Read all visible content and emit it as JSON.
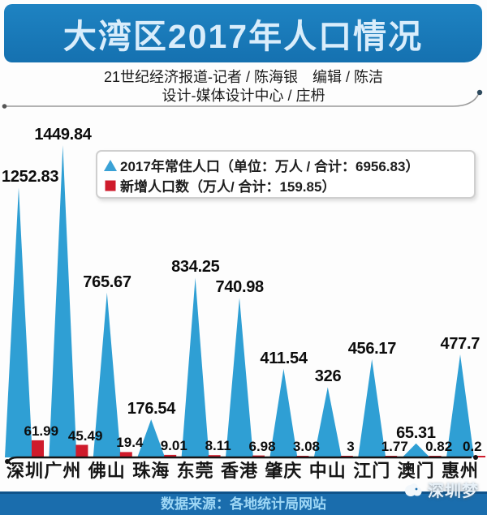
{
  "header": {
    "title": "大湾区2017年人口情况",
    "byline_line1": "21世纪经济报道-记者 / 陈海银　编辑 / 陈洁",
    "byline_line2": "设计-媒体设计中心 / 庄枬"
  },
  "legend": {
    "population": "2017年常住人口（单位：万人 / 合计：6956.83）",
    "increase": "新增人口数（万人/ 合计：159.85）"
  },
  "chart_data": {
    "type": "bar",
    "style": "triangle-spike pictorial columns + small bars",
    "title": "大湾区2017年人口情况",
    "categories": [
      "深圳",
      "广州",
      "佛山",
      "珠海",
      "东莞",
      "香港",
      "肇庆",
      "中山",
      "江门",
      "澳门",
      "惠州"
    ],
    "series": [
      {
        "name": "2017年常住人口",
        "unit": "万人",
        "total": 6956.83,
        "marker": "triangle",
        "color": "#2f9fd4",
        "values": [
          1252.83,
          1449.84,
          765.67,
          176.54,
          834.25,
          740.98,
          411.54,
          326,
          456.17,
          65.31,
          477.7
        ]
      },
      {
        "name": "新增人口数",
        "unit": "万人",
        "total": 159.85,
        "marker": "square",
        "color": "#cf1b2c",
        "values": [
          61.99,
          45.49,
          19.4,
          9.01,
          8.11,
          6.98,
          3.08,
          3,
          1.77,
          0.82,
          0.2
        ]
      }
    ],
    "ylim": [
      0,
      1500
    ],
    "grid": false,
    "value_labels": "above",
    "legend_position": "top-right",
    "colors": {
      "population": "#2f9fd4",
      "increase": "#cf1b2c",
      "baseline": "#151515"
    }
  },
  "footer": {
    "source": "数据来源：各地统计局网站",
    "watermark": "深圳梦"
  }
}
